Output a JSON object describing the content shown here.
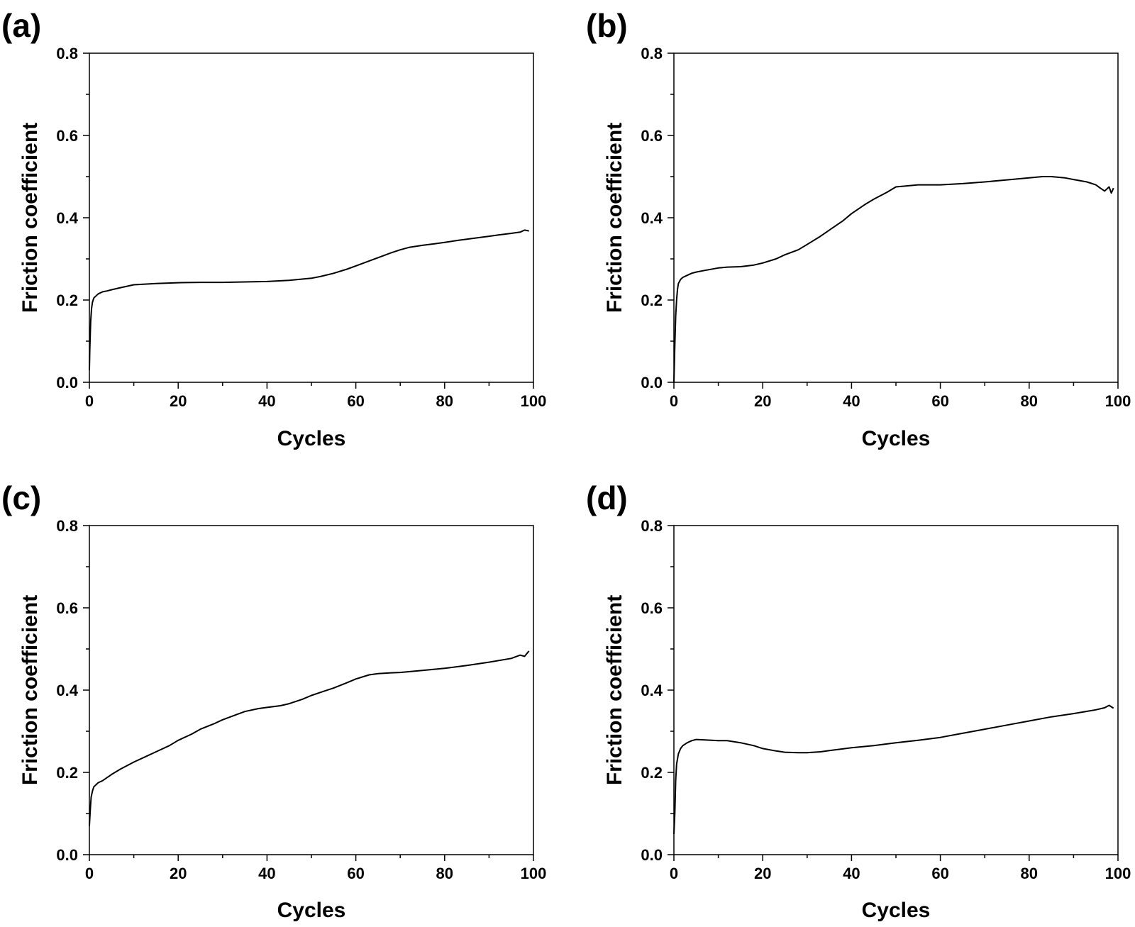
{
  "figure": {
    "line_color": "#000000",
    "background": "#ffffff"
  },
  "chart_data": [
    {
      "type": "line",
      "panel_label": "(a)",
      "xlabel": "Cycles",
      "ylabel": "Friction coefficient",
      "xlim": [
        0,
        100
      ],
      "ylim": [
        0,
        0.8
      ],
      "xticks": [
        "0",
        "20",
        "40",
        "60",
        "80",
        "100"
      ],
      "yticks": [
        "0.0",
        "0.2",
        "0.4",
        "0.6",
        "0.8"
      ],
      "series": [
        {
          "name": "friction",
          "x": [
            0,
            0.1,
            0.2,
            0.3,
            0.5,
            0.7,
            1,
            1.5,
            2,
            3,
            4,
            5,
            7,
            10,
            15,
            20,
            25,
            30,
            35,
            40,
            45,
            50,
            52,
            55,
            58,
            60,
            63,
            65,
            68,
            70,
            72,
            75,
            78,
            80,
            83,
            85,
            88,
            90,
            92,
            95,
            97,
            98,
            99
          ],
          "y": [
            0.03,
            0.08,
            0.12,
            0.15,
            0.18,
            0.195,
            0.205,
            0.21,
            0.215,
            0.22,
            0.222,
            0.225,
            0.23,
            0.237,
            0.24,
            0.242,
            0.243,
            0.243,
            0.244,
            0.245,
            0.248,
            0.253,
            0.257,
            0.265,
            0.275,
            0.283,
            0.295,
            0.303,
            0.315,
            0.322,
            0.328,
            0.333,
            0.337,
            0.34,
            0.345,
            0.348,
            0.352,
            0.355,
            0.358,
            0.362,
            0.365,
            0.37,
            0.368
          ]
        }
      ]
    },
    {
      "type": "line",
      "panel_label": "(b)",
      "xlabel": "Cycles",
      "ylabel": "Friction coefficient",
      "xlim": [
        0,
        100
      ],
      "ylim": [
        0,
        0.8
      ],
      "xticks": [
        "0",
        "20",
        "40",
        "60",
        "80",
        "100"
      ],
      "yticks": [
        "0.0",
        "0.2",
        "0.4",
        "0.6",
        "0.8"
      ],
      "series": [
        {
          "name": "friction",
          "x": [
            0,
            0.2,
            0.4,
            0.6,
            0.8,
            1,
            1.5,
            2,
            3,
            4,
            5,
            7,
            10,
            12,
            15,
            18,
            20,
            23,
            25,
            28,
            30,
            33,
            35,
            38,
            40,
            43,
            45,
            48,
            50,
            55,
            60,
            65,
            70,
            75,
            80,
            83,
            85,
            88,
            90,
            93,
            95,
            96,
            97,
            98,
            98.5,
            99
          ],
          "y": [
            0.0,
            0.09,
            0.16,
            0.2,
            0.225,
            0.24,
            0.25,
            0.255,
            0.26,
            0.265,
            0.268,
            0.272,
            0.278,
            0.28,
            0.281,
            0.285,
            0.29,
            0.3,
            0.31,
            0.322,
            0.335,
            0.355,
            0.37,
            0.392,
            0.41,
            0.432,
            0.445,
            0.462,
            0.475,
            0.48,
            0.48,
            0.483,
            0.487,
            0.492,
            0.497,
            0.5,
            0.5,
            0.497,
            0.493,
            0.487,
            0.48,
            0.472,
            0.465,
            0.475,
            0.46,
            0.472
          ]
        }
      ]
    },
    {
      "type": "line",
      "panel_label": "(c)",
      "xlabel": "Cycles",
      "ylabel": "Friction coefficient",
      "xlim": [
        0,
        100
      ],
      "ylim": [
        0,
        0.8
      ],
      "xticks": [
        "0",
        "20",
        "40",
        "60",
        "80",
        "100"
      ],
      "yticks": [
        "0.0",
        "0.2",
        "0.4",
        "0.6",
        "0.8"
      ],
      "series": [
        {
          "name": "friction",
          "x": [
            0,
            0.2,
            0.4,
            0.7,
            1,
            1.5,
            2,
            3,
            5,
            7,
            10,
            13,
            15,
            18,
            20,
            23,
            25,
            28,
            30,
            33,
            35,
            38,
            40,
            43,
            45,
            48,
            50,
            53,
            55,
            58,
            60,
            63,
            65,
            68,
            70,
            75,
            80,
            85,
            90,
            95,
            97,
            98,
            99
          ],
          "y": [
            0.07,
            0.11,
            0.14,
            0.155,
            0.165,
            0.17,
            0.175,
            0.18,
            0.195,
            0.208,
            0.225,
            0.24,
            0.25,
            0.265,
            0.278,
            0.293,
            0.305,
            0.318,
            0.328,
            0.34,
            0.348,
            0.355,
            0.358,
            0.362,
            0.367,
            0.378,
            0.387,
            0.398,
            0.405,
            0.418,
            0.427,
            0.437,
            0.44,
            0.442,
            0.443,
            0.448,
            0.453,
            0.46,
            0.468,
            0.477,
            0.485,
            0.482,
            0.495
          ]
        }
      ]
    },
    {
      "type": "line",
      "panel_label": "(d)",
      "xlabel": "Cycles",
      "ylabel": "Friction coefficient",
      "xlim": [
        0,
        100
      ],
      "ylim": [
        0,
        0.8
      ],
      "xticks": [
        "0",
        "20",
        "40",
        "60",
        "80",
        "100"
      ],
      "yticks": [
        "0.0",
        "0.2",
        "0.4",
        "0.6",
        "0.8"
      ],
      "series": [
        {
          "name": "friction",
          "x": [
            0,
            0.2,
            0.4,
            0.6,
            1,
            1.5,
            2,
            3,
            4,
            5,
            7,
            10,
            12,
            15,
            18,
            20,
            23,
            25,
            28,
            30,
            33,
            35,
            38,
            40,
            45,
            50,
            55,
            60,
            65,
            70,
            75,
            80,
            85,
            90,
            95,
            97,
            98,
            99
          ],
          "y": [
            0.05,
            0.1,
            0.18,
            0.22,
            0.245,
            0.258,
            0.265,
            0.272,
            0.277,
            0.28,
            0.279,
            0.277,
            0.277,
            0.272,
            0.265,
            0.258,
            0.252,
            0.249,
            0.248,
            0.248,
            0.25,
            0.253,
            0.257,
            0.26,
            0.265,
            0.272,
            0.278,
            0.285,
            0.295,
            0.305,
            0.315,
            0.325,
            0.335,
            0.343,
            0.352,
            0.357,
            0.363,
            0.356
          ]
        }
      ]
    }
  ]
}
